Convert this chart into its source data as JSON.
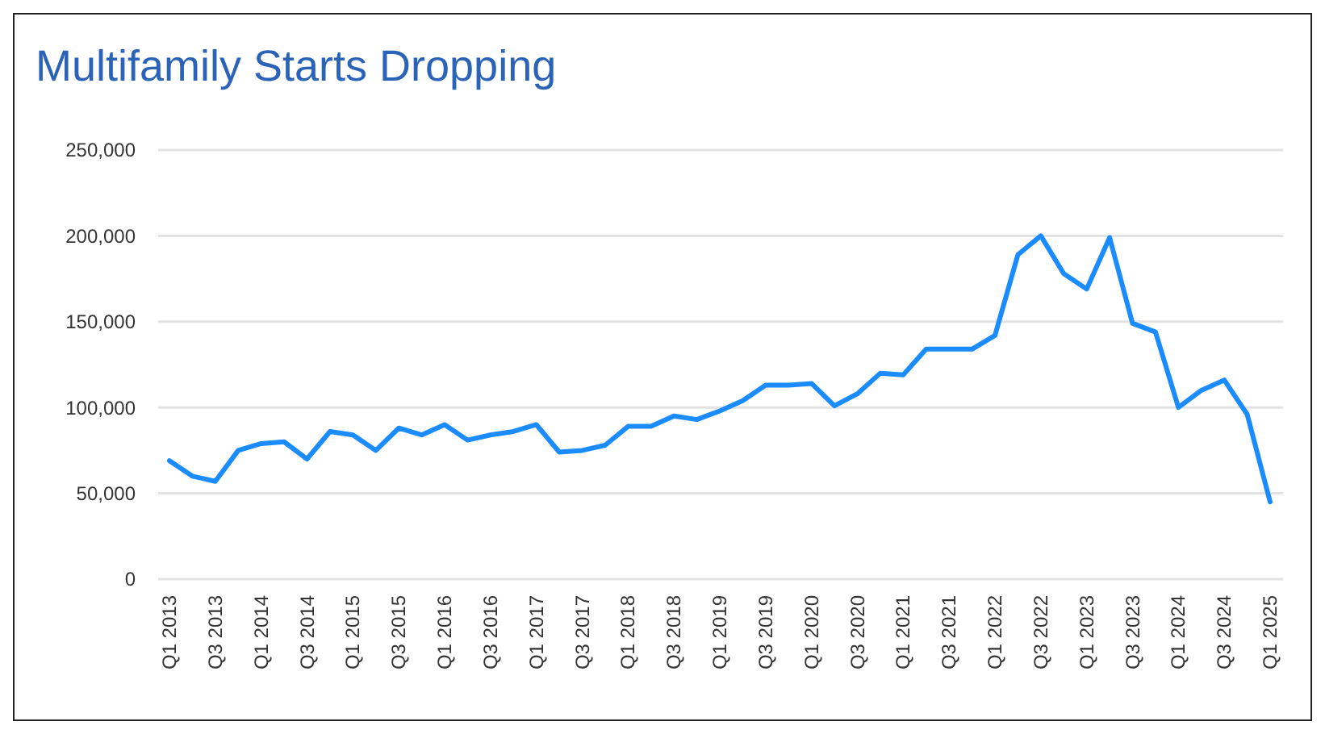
{
  "chart_data": {
    "type": "line",
    "title": "Multifamily Starts Dropping",
    "categories": [
      "Q1 2013",
      null,
      "Q3 2013",
      null,
      "Q1 2014",
      null,
      "Q3 2014",
      null,
      "Q1 2015",
      null,
      "Q3 2015",
      null,
      "Q1 2016",
      null,
      "Q3 2016",
      null,
      "Q1 2017",
      null,
      "Q3 2017",
      null,
      "Q1 2018",
      null,
      "Q3 2018",
      null,
      "Q1 2019",
      null,
      "Q3 2019",
      null,
      "Q1 2020",
      null,
      "Q3 2020",
      null,
      "Q1 2021",
      null,
      "Q3 2021",
      null,
      "Q1 2022",
      null,
      "Q3 2022",
      null,
      "Q1 2023",
      null,
      "Q3 2023",
      null,
      "Q1 2024",
      null,
      "Q3 2024",
      null,
      "Q1 2025"
    ],
    "series": [
      {
        "color": "#1a8cff",
        "values": [
          69000,
          60000,
          57000,
          75000,
          79000,
          80000,
          70000,
          86000,
          84000,
          75000,
          88000,
          84000,
          90000,
          81000,
          84000,
          86000,
          90000,
          74000,
          75000,
          78000,
          89000,
          89000,
          95000,
          93000,
          98000,
          104000,
          113000,
          113000,
          114000,
          101000,
          108000,
          120000,
          119000,
          134000,
          134000,
          134000,
          142000,
          189000,
          200000,
          178000,
          169000,
          199000,
          149000,
          144000,
          100000,
          110000,
          116000,
          96000,
          45000
        ]
      }
    ],
    "ylim": [
      0,
      250000
    ],
    "yticks": [
      {
        "value": 0,
        "label": "0"
      },
      {
        "value": 50000,
        "label": "50,000"
      },
      {
        "value": 100000,
        "label": "100,000"
      },
      {
        "value": 150000,
        "label": "150,000"
      },
      {
        "value": 200000,
        "label": "200,000"
      },
      {
        "value": 250000,
        "label": "250,000"
      }
    ],
    "grid": "y",
    "marker": "none",
    "line_style": "solid"
  }
}
